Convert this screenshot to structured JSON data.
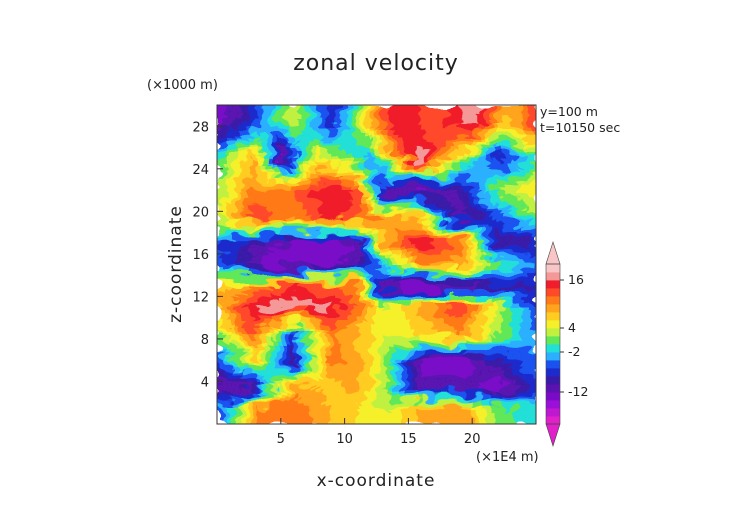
{
  "chart_data": {
    "type": "heatmap",
    "title": "zonal velocity",
    "xlabel": "x-coordinate",
    "ylabel": "z-coordinate",
    "x_unit": "(×1E4 m)",
    "y_unit": "(×1000 m)",
    "annotations": [
      "y=100 m",
      "t=10150 sec"
    ],
    "xlim": [
      0,
      25
    ],
    "ylim": [
      0,
      30
    ],
    "x_ticks": [
      5,
      10,
      15,
      20
    ],
    "y_ticks": [
      4,
      8,
      12,
      16,
      20,
      24,
      28
    ],
    "colorbar": {
      "labels": [
        16,
        4,
        -2,
        -12
      ],
      "levels": [
        -20,
        -18,
        -16,
        -14,
        -12,
        -10,
        -8,
        -6,
        -4,
        -2,
        0,
        2,
        4,
        6,
        8,
        10,
        12,
        14,
        16,
        18,
        20
      ],
      "colors": [
        "#e020c8",
        "#c018d0",
        "#9a10d8",
        "#7a0ac8",
        "#5a12b0",
        "#3a1aa8",
        "#1c2ccc",
        "#1a52f0",
        "#2ab0ff",
        "#20e0d8",
        "#60e858",
        "#c0f040",
        "#f6f02a",
        "#ffcc22",
        "#ffa41c",
        "#ff7a18",
        "#ff4a2a",
        "#f01e2c",
        "#f49898",
        "#f8c6c6"
      ]
    },
    "bands": [
      {
        "z": 28.5,
        "profile": [
          [
            0,
            -14
          ],
          [
            3,
            -6
          ],
          [
            6,
            4
          ],
          [
            9,
            -8
          ],
          [
            12,
            8
          ],
          [
            14,
            16
          ],
          [
            17,
            12
          ],
          [
            20,
            18
          ],
          [
            23,
            8
          ],
          [
            25,
            14
          ]
        ]
      },
      {
        "z": 25,
        "profile": [
          [
            0,
            0
          ],
          [
            3,
            8
          ],
          [
            5,
            -14
          ],
          [
            8,
            6
          ],
          [
            12,
            -4
          ],
          [
            14,
            10
          ],
          [
            16,
            18
          ],
          [
            19,
            4
          ],
          [
            22,
            -8
          ],
          [
            25,
            0
          ]
        ]
      },
      {
        "z": 22,
        "profile": [
          [
            0,
            2
          ],
          [
            3,
            10
          ],
          [
            6,
            12
          ],
          [
            9,
            16
          ],
          [
            11,
            14
          ],
          [
            13,
            -12
          ],
          [
            16,
            -14
          ],
          [
            19,
            -10
          ],
          [
            22,
            2
          ],
          [
            25,
            6
          ]
        ]
      },
      {
        "z": 19.5,
        "profile": [
          [
            0,
            4
          ],
          [
            3,
            14
          ],
          [
            6,
            10
          ],
          [
            9,
            16
          ],
          [
            11,
            12
          ],
          [
            13,
            10
          ],
          [
            16,
            6
          ],
          [
            19,
            -12
          ],
          [
            22,
            -6
          ],
          [
            25,
            2
          ]
        ]
      },
      {
        "z": 17,
        "profile": [
          [
            0,
            -6
          ],
          [
            3,
            -10
          ],
          [
            6,
            -14
          ],
          [
            9,
            -14
          ],
          [
            11,
            -12
          ],
          [
            13,
            8
          ],
          [
            16,
            16
          ],
          [
            19,
            12
          ],
          [
            22,
            -10
          ],
          [
            25,
            -8
          ]
        ]
      },
      {
        "z": 15,
        "profile": [
          [
            0,
            -4
          ],
          [
            3,
            -12
          ],
          [
            6,
            -14
          ],
          [
            9,
            -12
          ],
          [
            11,
            -10
          ],
          [
            13,
            -2
          ],
          [
            16,
            10
          ],
          [
            19,
            8
          ],
          [
            22,
            2
          ],
          [
            25,
            -4
          ]
        ]
      },
      {
        "z": 13,
        "profile": [
          [
            0,
            6
          ],
          [
            3,
            10
          ],
          [
            6,
            14
          ],
          [
            9,
            12
          ],
          [
            11,
            10
          ],
          [
            13,
            -12
          ],
          [
            16,
            -14
          ],
          [
            19,
            -12
          ],
          [
            22,
            -10
          ],
          [
            25,
            -8
          ]
        ]
      },
      {
        "z": 11,
        "profile": [
          [
            0,
            8
          ],
          [
            3,
            16
          ],
          [
            6,
            18
          ],
          [
            9,
            16
          ],
          [
            11,
            12
          ],
          [
            13,
            4
          ],
          [
            16,
            8
          ],
          [
            19,
            14
          ],
          [
            22,
            4
          ],
          [
            25,
            -6
          ]
        ]
      },
      {
        "z": 8.5,
        "profile": [
          [
            0,
            2
          ],
          [
            3,
            12
          ],
          [
            6,
            -6
          ],
          [
            9,
            10
          ],
          [
            11,
            8
          ],
          [
            13,
            4
          ],
          [
            16,
            6
          ],
          [
            19,
            10
          ],
          [
            22,
            2
          ],
          [
            25,
            -4
          ]
        ]
      },
      {
        "z": 6,
        "profile": [
          [
            0,
            -6
          ],
          [
            3,
            6
          ],
          [
            6,
            -10
          ],
          [
            9,
            12
          ],
          [
            11,
            8
          ],
          [
            13,
            4
          ],
          [
            16,
            -12
          ],
          [
            19,
            -14
          ],
          [
            22,
            -8
          ],
          [
            25,
            -4
          ]
        ]
      },
      {
        "z": 3.5,
        "profile": [
          [
            0,
            -12
          ],
          [
            3,
            -10
          ],
          [
            6,
            10
          ],
          [
            9,
            6
          ],
          [
            11,
            10
          ],
          [
            13,
            2
          ],
          [
            16,
            -12
          ],
          [
            19,
            -10
          ],
          [
            22,
            -14
          ],
          [
            25,
            -6
          ]
        ]
      },
      {
        "z": 1.5,
        "profile": [
          [
            0,
            -6
          ],
          [
            3,
            10
          ],
          [
            6,
            12
          ],
          [
            9,
            8
          ],
          [
            11,
            6
          ],
          [
            13,
            4
          ],
          [
            16,
            8
          ],
          [
            19,
            10
          ],
          [
            22,
            2
          ],
          [
            25,
            -2
          ]
        ]
      }
    ]
  }
}
